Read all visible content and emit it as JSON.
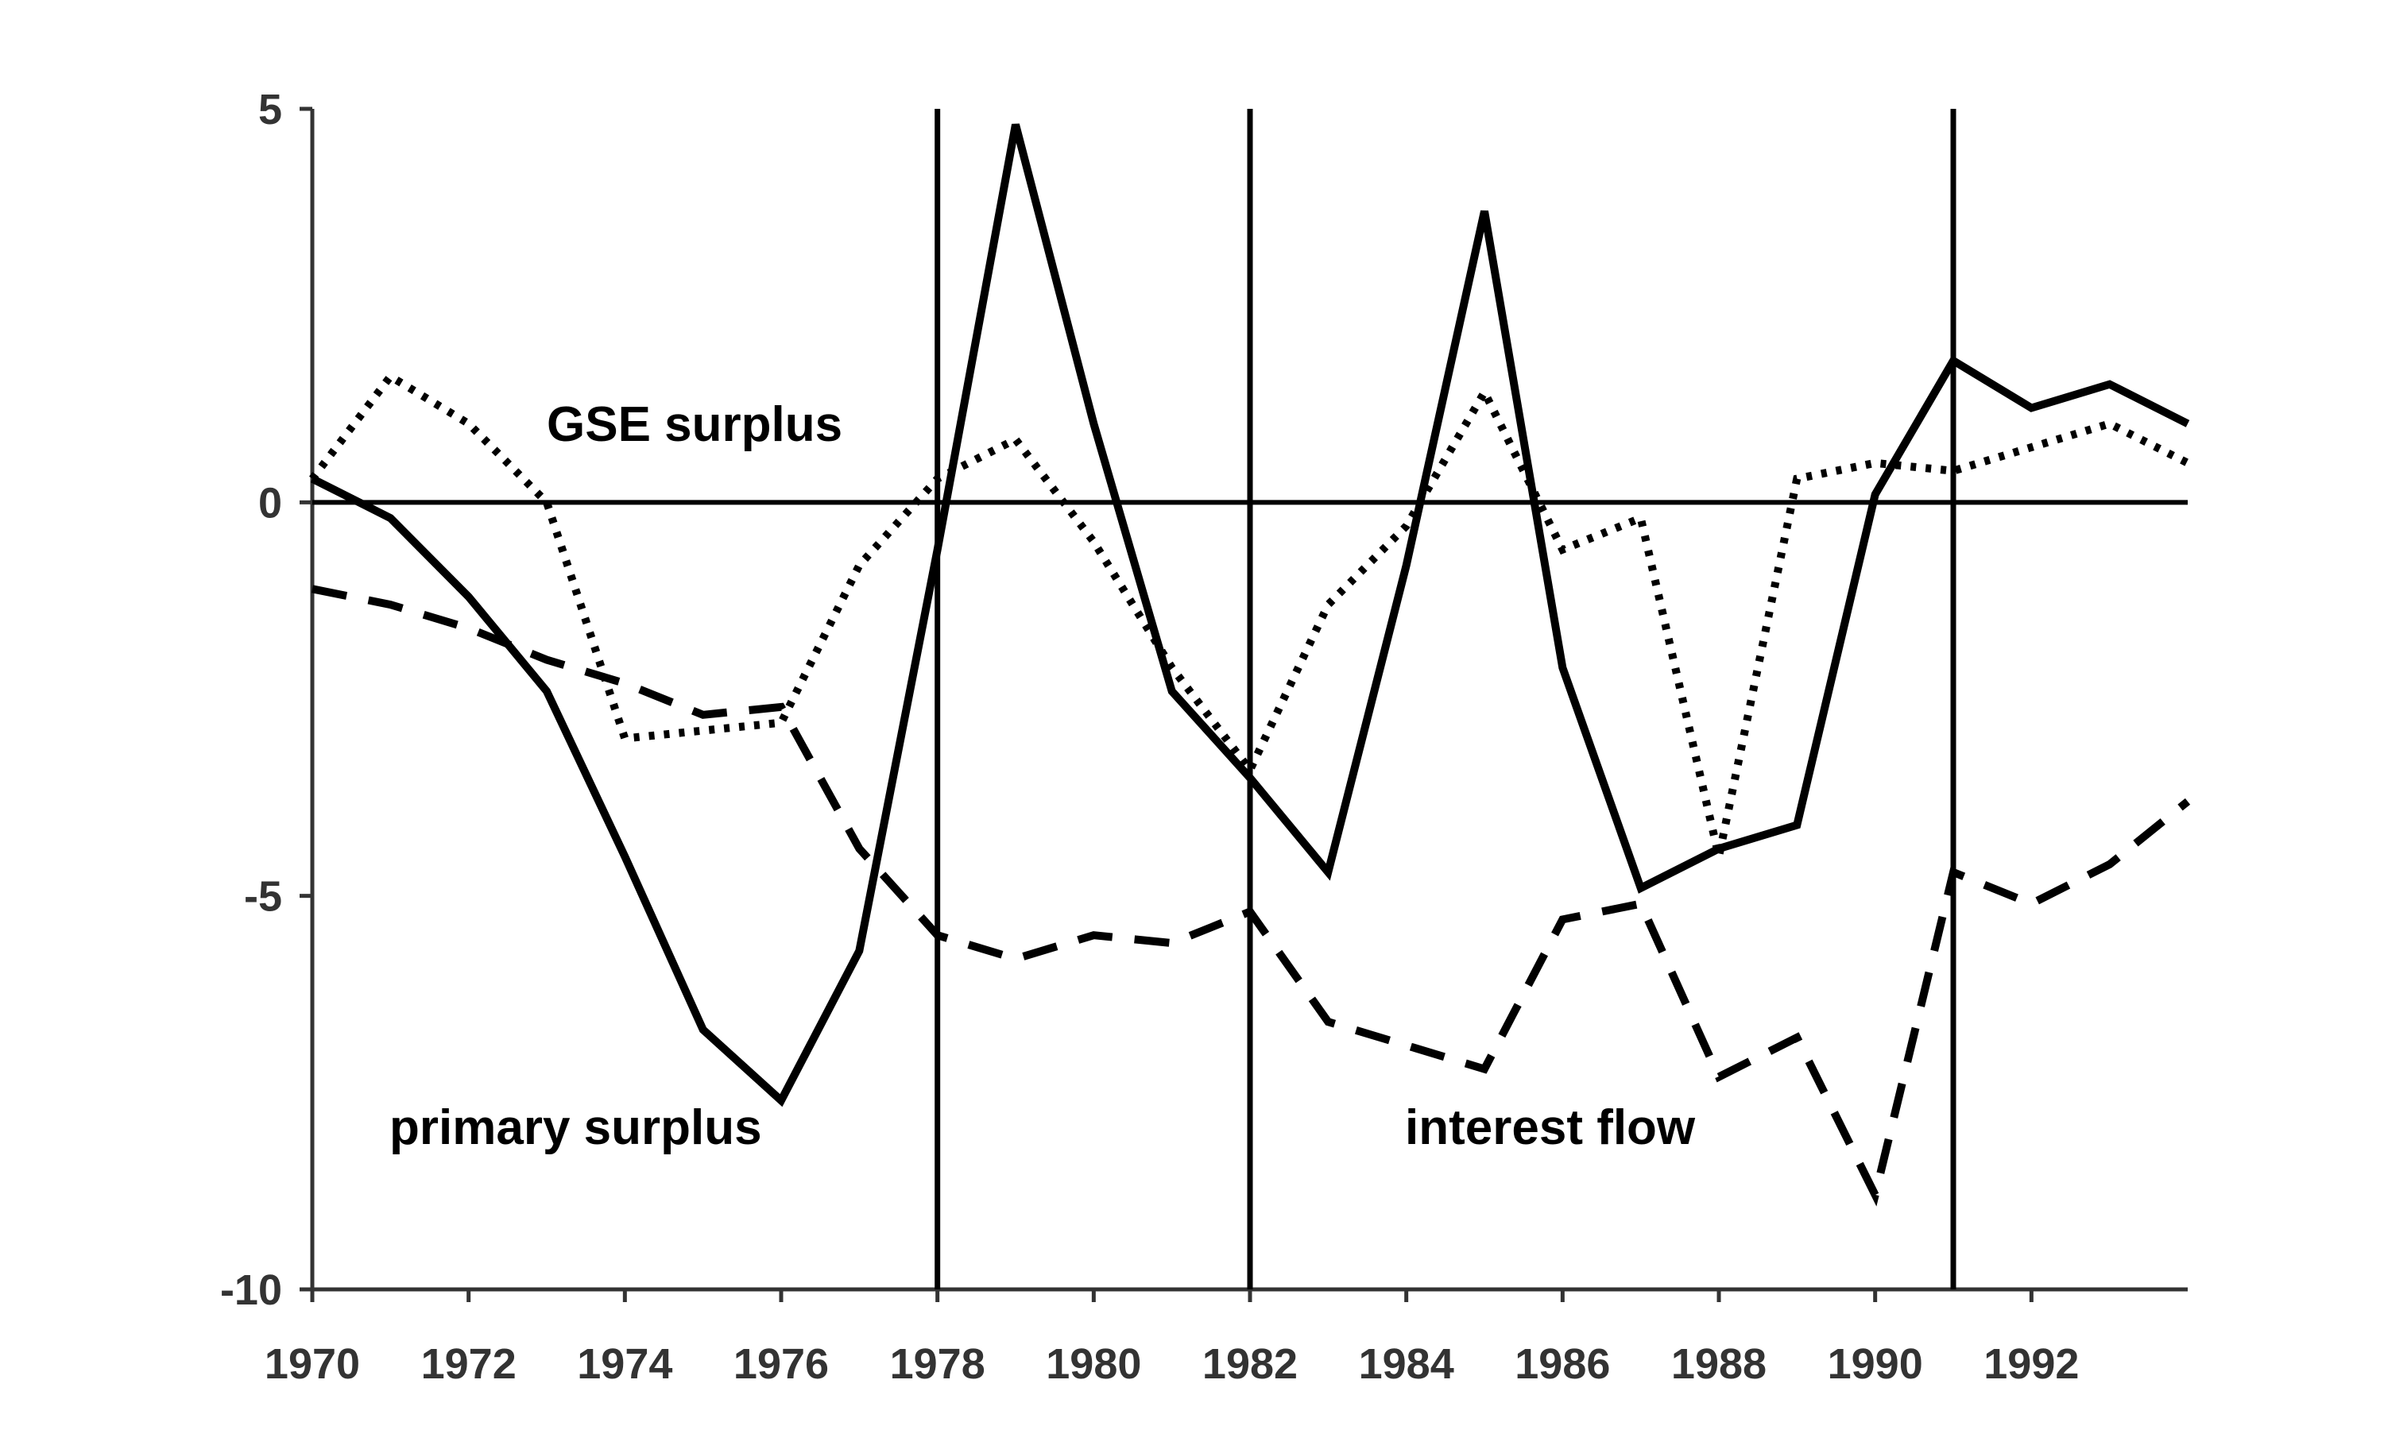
{
  "chart_data": {
    "type": "line",
    "title": "",
    "xlabel": "",
    "ylabel": "",
    "xlim": [
      1970,
      1994
    ],
    "ylim": [
      -10,
      5
    ],
    "x_ticks": [
      1970,
      1972,
      1974,
      1976,
      1978,
      1980,
      1982,
      1984,
      1986,
      1988,
      1990,
      1992
    ],
    "x_tick_labels": [
      "1970",
      "1972",
      "1974",
      "1976",
      "1978",
      "1980",
      "1982",
      "1984",
      "1986",
      "1988",
      "1990",
      "1992"
    ],
    "y_ticks": [
      -10,
      -5,
      0,
      5
    ],
    "y_tick_labels": [
      "-10",
      "-5",
      "0",
      "5"
    ],
    "grid": false,
    "legend": false,
    "reference_lines": {
      "horizontal": [
        0
      ],
      "vertical": [
        1978,
        1982,
        1991
      ]
    },
    "x": [
      1970,
      1971,
      1972,
      1973,
      1974,
      1975,
      1976,
      1977,
      1978,
      1979,
      1980,
      1981,
      1982,
      1983,
      1984,
      1985,
      1986,
      1987,
      1988,
      1989,
      1990,
      1991,
      1992,
      1993,
      1994
    ],
    "series": [
      {
        "name": "primary surplus",
        "style": "solid",
        "values": [
          0.3,
          -0.2,
          -1.2,
          -2.4,
          -4.5,
          -6.7,
          -7.6,
          -5.7,
          -0.6,
          4.8,
          1.0,
          -2.4,
          -3.5,
          -4.7,
          -0.8,
          3.7,
          -2.1,
          -4.9,
          -4.4,
          -4.1,
          0.1,
          1.8,
          1.2,
          1.5,
          1.0
        ]
      },
      {
        "name": "GSE surplus",
        "style": "dotted",
        "values": [
          0.3,
          1.6,
          1.0,
          0.0,
          -3.0,
          -2.9,
          -2.8,
          -0.8,
          0.3,
          0.8,
          -0.5,
          -2.1,
          -3.4,
          -1.3,
          -0.3,
          1.4,
          -0.6,
          -0.2,
          -4.5,
          0.3,
          0.5,
          0.4,
          0.7,
          1.0,
          0.5
        ]
      },
      {
        "name": "interest flow",
        "style": "dashed",
        "values": [
          -1.1,
          -1.3,
          -1.6,
          -2.0,
          -2.3,
          -2.7,
          -2.6,
          -4.4,
          -5.5,
          -5.8,
          -5.5,
          -5.6,
          -5.2,
          -6.6,
          -6.9,
          -7.2,
          -5.3,
          -5.1,
          -7.3,
          -6.8,
          -8.8,
          -4.7,
          -5.1,
          -4.6,
          -3.8
        ]
      }
    ]
  },
  "annotations": {
    "gse": "GSE surplus",
    "primary": "primary surplus",
    "interest": "interest flow"
  }
}
